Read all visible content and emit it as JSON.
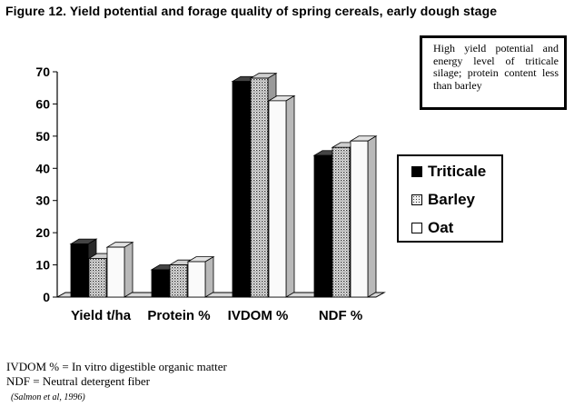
{
  "figure_title": "Figure 12.  Yield potential and forage quality of spring cereals, early dough stage",
  "annotation": "High yield potential and energy level of triticale silage; protein content less than barley",
  "footnotes": [
    "IVDOM % = In vitro digestible organic matter",
    "NDF = Neutral detergent fiber"
  ],
  "source": "(Salmon et al, 1996)",
  "chart_data": {
    "type": "bar",
    "style": "3d-clustered",
    "categories": [
      "Yield t/ha",
      "Protein %",
      "IVDOM %",
      "NDF %"
    ],
    "series": [
      {
        "name": "Triticale",
        "values": [
          16.5,
          8.5,
          67,
          44
        ],
        "fill": "#000000"
      },
      {
        "name": "Barley",
        "values": [
          12,
          10,
          68,
          46.5
        ],
        "fill": "dots"
      },
      {
        "name": "Oat",
        "values": [
          15.5,
          11,
          61,
          48.5
        ],
        "fill": "#ffffff"
      }
    ],
    "yticks": [
      0,
      10,
      20,
      30,
      40,
      50,
      60,
      70
    ],
    "ylim": [
      0,
      70
    ],
    "legend_position": "right",
    "grid": false
  }
}
